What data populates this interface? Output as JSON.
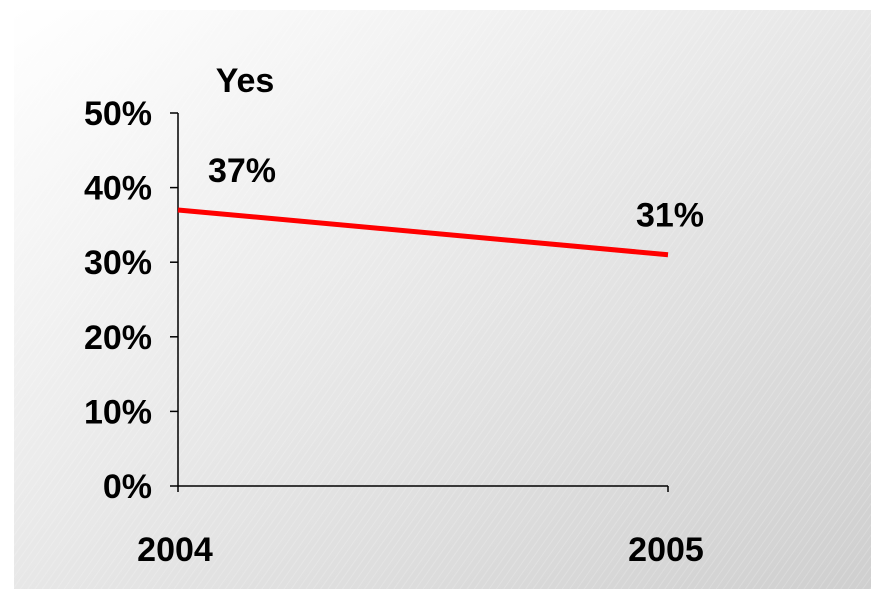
{
  "chart_data": {
    "type": "line",
    "title": "Yes",
    "categories": [
      "2004",
      "2005"
    ],
    "series": [
      {
        "values": [
          37,
          31
        ],
        "labels": [
          "37%",
          "31%"
        ],
        "color": "#ff0000"
      }
    ],
    "ylim": [
      0,
      50
    ],
    "yticks": [
      0,
      10,
      20,
      30,
      40,
      50
    ],
    "ytick_labels": [
      "0%",
      "10%",
      "20%",
      "30%",
      "40%",
      "50%"
    ],
    "grid": false,
    "legend": "none"
  },
  "colors": {
    "background_light": "#ffffff",
    "background_dark": "#cfcfcf",
    "axis": "#000000",
    "line": "#ff0000"
  }
}
